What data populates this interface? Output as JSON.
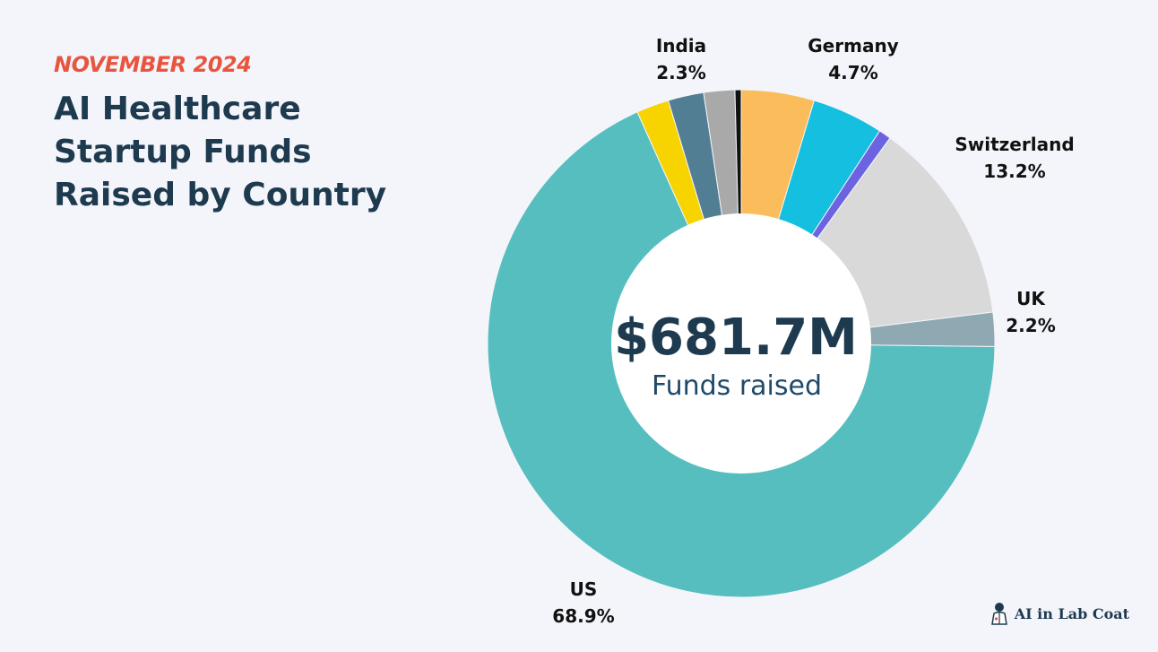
{
  "header": {
    "eyebrow": "NOVEMBER 2024",
    "title_lines": [
      "AI Healthcare",
      "Startup Funds",
      "Raised by Country"
    ]
  },
  "center": {
    "value": "$681.7M",
    "caption": "Funds raised"
  },
  "brand": {
    "text": "AI in Lab Coat",
    "icon": "lab-coat-icon"
  },
  "chart_data": {
    "type": "pie",
    "donut": true,
    "title": "AI Healthcare Startup Funds Raised by Country",
    "total_label": "$681.7M",
    "unit": "%",
    "slices": [
      {
        "name": "Germany",
        "value": 4.7,
        "color": "#fbbd5c",
        "label": "Germany",
        "value_label": "4.7%"
      },
      {
        "name": "",
        "value": 4.6,
        "color": "#14bfdf",
        "label": "",
        "value_label": ""
      },
      {
        "name": "",
        "value": 0.8,
        "color": "#6c63e0",
        "label": "",
        "value_label": ""
      },
      {
        "name": "Switzerland",
        "value": 13.2,
        "color": "#d9d9d9",
        "label": "Switzerland",
        "value_label": "13.2%"
      },
      {
        "name": "UK",
        "value": 2.2,
        "color": "#8fa9b3",
        "label": "UK",
        "value_label": "2.2%"
      },
      {
        "name": "US",
        "value": 68.9,
        "color": "#56bebf",
        "label": "US",
        "value_label": "68.9%"
      },
      {
        "name": "",
        "value": 2.1,
        "color": "#f7d400",
        "label": "",
        "value_label": ""
      },
      {
        "name": "India",
        "value": 2.3,
        "color": "#527e94",
        "label": "India",
        "value_label": "2.3%"
      },
      {
        "name": "",
        "value": 2.0,
        "color": "#a9a9a9",
        "label": "",
        "value_label": ""
      },
      {
        "name": "",
        "value": 0.4,
        "color": "#111111",
        "label": "",
        "value_label": ""
      }
    ]
  }
}
